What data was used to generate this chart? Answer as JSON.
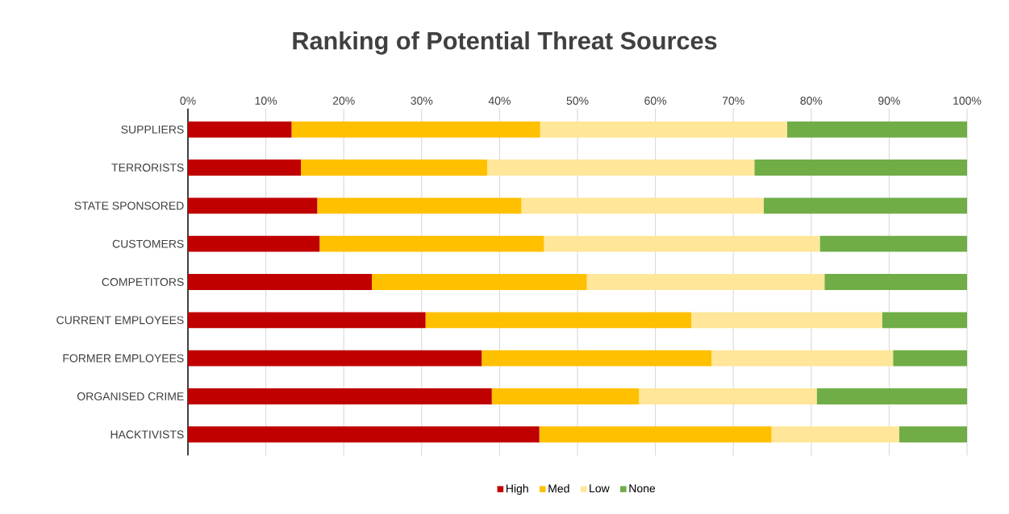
{
  "chart_data": {
    "type": "bar",
    "orientation": "horizontal",
    "stacked": true,
    "title": "Ranking of Potential Threat Sources",
    "categories": [
      "SUPPLIERS",
      "TERRORISTS",
      "STATE SPONSORED",
      "CUSTOMERS",
      "COMPETITORS",
      "CURRENT EMPLOYEES",
      "FORMER EMPLOYEES",
      "ORGANISED CRIME",
      "HACKTIVISTS"
    ],
    "series": [
      {
        "name": "High",
        "color": "#c00000",
        "values": [
          13.3,
          14.5,
          16.6,
          16.9,
          23.6,
          30.5,
          37.7,
          39.0,
          45.1
        ]
      },
      {
        "name": "Med",
        "color": "#ffc000",
        "values": [
          31.9,
          23.9,
          26.2,
          28.8,
          27.6,
          34.1,
          29.5,
          18.9,
          29.8
        ]
      },
      {
        "name": "Low",
        "color": "#ffe699",
        "values": [
          31.7,
          34.3,
          31.1,
          35.4,
          30.5,
          24.5,
          23.3,
          22.8,
          16.4
        ]
      },
      {
        "name": "None",
        "color": "#70ad47",
        "values": [
          23.1,
          27.3,
          26.1,
          18.9,
          18.3,
          10.9,
          9.5,
          19.3,
          8.7
        ]
      }
    ],
    "xlim": [
      0,
      100
    ],
    "xticks": [
      {
        "value": 0,
        "label": "0%"
      },
      {
        "value": 10,
        "label": "10%"
      },
      {
        "value": 20,
        "label": "20%"
      },
      {
        "value": 30,
        "label": "30%"
      },
      {
        "value": 40,
        "label": "40%"
      },
      {
        "value": 50,
        "label": "50%"
      },
      {
        "value": 60,
        "label": "60%"
      },
      {
        "value": 70,
        "label": "70%"
      },
      {
        "value": 80,
        "label": "80%"
      },
      {
        "value": 90,
        "label": "90%"
      },
      {
        "value": 100,
        "label": "100%"
      }
    ],
    "grid": "x",
    "legend": "bottom"
  }
}
